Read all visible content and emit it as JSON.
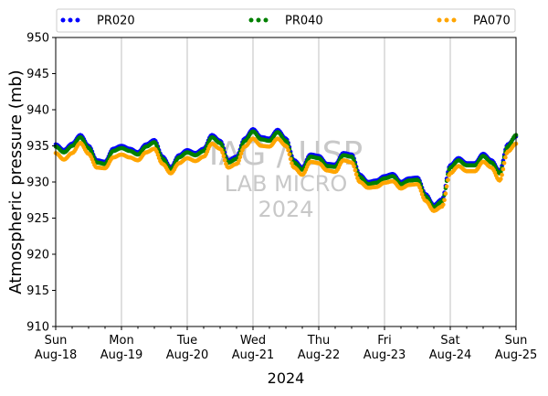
{
  "chart_data": {
    "type": "scatter",
    "xlabel": "2024",
    "ylabel": "Atmospheric pressure (mb)",
    "ylim": [
      910,
      950
    ],
    "yticks": [
      910,
      915,
      920,
      925,
      930,
      935,
      940,
      945,
      950
    ],
    "xlim": [
      "2024-08-18 00:00",
      "2024-08-25 00:00"
    ],
    "x_major_ticks": [
      {
        "day": "Sun",
        "date": "Aug-18"
      },
      {
        "day": "Mon",
        "date": "Aug-19"
      },
      {
        "day": "Tue",
        "date": "Aug-20"
      },
      {
        "day": "Wed",
        "date": "Aug-21"
      },
      {
        "day": "Thu",
        "date": "Aug-22"
      },
      {
        "day": "Fri",
        "date": "Aug-23"
      },
      {
        "day": "Sat",
        "date": "Aug-24"
      },
      {
        "day": "Sun",
        "date": "Aug-25"
      }
    ],
    "grid": "vertical major",
    "legend_position": "top",
    "watermark": [
      "IAG / USP",
      "LAB MICRO",
      "2024"
    ],
    "series": [
      {
        "name": "PR020",
        "color": "#0000ff",
        "points": [
          [
            "2024-08-18 00:00",
            935.2
          ],
          [
            "2024-08-18 03:00",
            934.4
          ],
          [
            "2024-08-18 06:00",
            935.3
          ],
          [
            "2024-08-18 09:00",
            936.5
          ],
          [
            "2024-08-18 12:00",
            935.0
          ],
          [
            "2024-08-18 15:00",
            933.0
          ],
          [
            "2024-08-18 18:00",
            932.8
          ],
          [
            "2024-08-18 21:00",
            934.6
          ],
          [
            "2024-08-19 00:00",
            935.0
          ],
          [
            "2024-08-19 03:00",
            934.6
          ],
          [
            "2024-08-19 06:00",
            934.1
          ],
          [
            "2024-08-19 09:00",
            935.2
          ],
          [
            "2024-08-19 12:00",
            935.8
          ],
          [
            "2024-08-19 15:00",
            933.5
          ],
          [
            "2024-08-19 18:00",
            932.0
          ],
          [
            "2024-08-19 21:00",
            933.7
          ],
          [
            "2024-08-20 00:00",
            934.4
          ],
          [
            "2024-08-20 03:00",
            934.0
          ],
          [
            "2024-08-20 06:00",
            934.6
          ],
          [
            "2024-08-20 09:00",
            936.5
          ],
          [
            "2024-08-20 12:00",
            935.7
          ],
          [
            "2024-08-20 15:00",
            933.0
          ],
          [
            "2024-08-20 18:00",
            933.5
          ],
          [
            "2024-08-20 21:00",
            936.0
          ],
          [
            "2024-08-21 00:00",
            937.3
          ],
          [
            "2024-08-21 03:00",
            936.2
          ],
          [
            "2024-08-21 06:00",
            936.0
          ],
          [
            "2024-08-21 09:00",
            937.2
          ],
          [
            "2024-08-21 12:00",
            936.0
          ],
          [
            "2024-08-21 15:00",
            933.0
          ],
          [
            "2024-08-21 18:00",
            932.0
          ],
          [
            "2024-08-21 21:00",
            933.8
          ],
          [
            "2024-08-22 00:00",
            933.6
          ],
          [
            "2024-08-22 03:00",
            932.5
          ],
          [
            "2024-08-22 06:00",
            932.4
          ],
          [
            "2024-08-22 09:00",
            934.0
          ],
          [
            "2024-08-22 12:00",
            933.8
          ],
          [
            "2024-08-22 15:00",
            931.0
          ],
          [
            "2024-08-22 18:00",
            930.0
          ],
          [
            "2024-08-22 21:00",
            930.2
          ],
          [
            "2024-08-23 00:00",
            930.8
          ],
          [
            "2024-08-23 03:00",
            931.1
          ],
          [
            "2024-08-23 06:00",
            930.0
          ],
          [
            "2024-08-23 09:00",
            930.5
          ],
          [
            "2024-08-23 12:00",
            930.6
          ],
          [
            "2024-08-23 15:00",
            928.3
          ],
          [
            "2024-08-23 18:00",
            926.8
          ],
          [
            "2024-08-23 21:00",
            927.6
          ],
          [
            "2024-08-24 00:00",
            932.3
          ],
          [
            "2024-08-24 03:00",
            933.3
          ],
          [
            "2024-08-24 06:00",
            932.6
          ],
          [
            "2024-08-24 09:00",
            932.6
          ],
          [
            "2024-08-24 12:00",
            933.9
          ],
          [
            "2024-08-24 15:00",
            933.0
          ],
          [
            "2024-08-24 18:00",
            931.5
          ],
          [
            "2024-08-24 21:00",
            935.2
          ],
          [
            "2024-08-25 00:00",
            936.3
          ]
        ]
      },
      {
        "name": "PR040",
        "color": "#008000",
        "points": [
          [
            "2024-08-18 00:00",
            934.9
          ],
          [
            "2024-08-18 03:00",
            934.1
          ],
          [
            "2024-08-18 06:00",
            935.0
          ],
          [
            "2024-08-18 09:00",
            936.2
          ],
          [
            "2024-08-18 12:00",
            934.7
          ],
          [
            "2024-08-18 15:00",
            932.7
          ],
          [
            "2024-08-18 18:00",
            932.5
          ],
          [
            "2024-08-18 21:00",
            934.3
          ],
          [
            "2024-08-19 00:00",
            934.7
          ],
          [
            "2024-08-19 03:00",
            934.3
          ],
          [
            "2024-08-19 06:00",
            933.8
          ],
          [
            "2024-08-19 09:00",
            934.9
          ],
          [
            "2024-08-19 12:00",
            935.5
          ],
          [
            "2024-08-19 15:00",
            933.2
          ],
          [
            "2024-08-19 18:00",
            931.7
          ],
          [
            "2024-08-19 21:00",
            933.4
          ],
          [
            "2024-08-20 00:00",
            934.1
          ],
          [
            "2024-08-20 03:00",
            933.7
          ],
          [
            "2024-08-20 06:00",
            934.3
          ],
          [
            "2024-08-20 09:00",
            936.2
          ],
          [
            "2024-08-20 12:00",
            935.4
          ],
          [
            "2024-08-20 15:00",
            932.7
          ],
          [
            "2024-08-20 18:00",
            933.2
          ],
          [
            "2024-08-20 21:00",
            935.7
          ],
          [
            "2024-08-21 00:00",
            937.0
          ],
          [
            "2024-08-21 03:00",
            935.9
          ],
          [
            "2024-08-21 06:00",
            935.7
          ],
          [
            "2024-08-21 09:00",
            936.9
          ],
          [
            "2024-08-21 12:00",
            935.7
          ],
          [
            "2024-08-21 15:00",
            932.7
          ],
          [
            "2024-08-21 18:00",
            931.7
          ],
          [
            "2024-08-21 21:00",
            933.5
          ],
          [
            "2024-08-22 00:00",
            933.3
          ],
          [
            "2024-08-22 03:00",
            932.2
          ],
          [
            "2024-08-22 06:00",
            932.1
          ],
          [
            "2024-08-22 09:00",
            933.7
          ],
          [
            "2024-08-22 12:00",
            933.5
          ],
          [
            "2024-08-22 15:00",
            930.7
          ],
          [
            "2024-08-22 18:00",
            929.7
          ],
          [
            "2024-08-22 21:00",
            929.9
          ],
          [
            "2024-08-23 00:00",
            930.5
          ],
          [
            "2024-08-23 03:00",
            930.8
          ],
          [
            "2024-08-23 06:00",
            929.7
          ],
          [
            "2024-08-23 09:00",
            930.2
          ],
          [
            "2024-08-23 12:00",
            930.3
          ],
          [
            "2024-08-23 15:00",
            928.0
          ],
          [
            "2024-08-23 18:00",
            926.5
          ],
          [
            "2024-08-23 21:00",
            927.3
          ],
          [
            "2024-08-24 00:00",
            932.0
          ],
          [
            "2024-08-24 03:00",
            933.0
          ],
          [
            "2024-08-24 06:00",
            932.3
          ],
          [
            "2024-08-24 09:00",
            932.3
          ],
          [
            "2024-08-24 12:00",
            933.6
          ],
          [
            "2024-08-24 15:00",
            932.7
          ],
          [
            "2024-08-24 18:00",
            931.2
          ],
          [
            "2024-08-24 21:00",
            934.9
          ],
          [
            "2024-08-25 00:00",
            936.5
          ]
        ]
      },
      {
        "name": "PA070",
        "color": "#ffa500",
        "points": [
          [
            "2024-08-18 00:00",
            934.0
          ],
          [
            "2024-08-18 03:00",
            933.1
          ],
          [
            "2024-08-18 06:00",
            934.0
          ],
          [
            "2024-08-18 09:00",
            935.4
          ],
          [
            "2024-08-18 12:00",
            933.9
          ],
          [
            "2024-08-18 15:00",
            932.0
          ],
          [
            "2024-08-18 18:00",
            931.9
          ],
          [
            "2024-08-18 21:00",
            933.4
          ],
          [
            "2024-08-19 00:00",
            933.8
          ],
          [
            "2024-08-19 03:00",
            933.4
          ],
          [
            "2024-08-19 06:00",
            933.0
          ],
          [
            "2024-08-19 09:00",
            934.1
          ],
          [
            "2024-08-19 12:00",
            934.6
          ],
          [
            "2024-08-19 15:00",
            932.5
          ],
          [
            "2024-08-19 18:00",
            931.2
          ],
          [
            "2024-08-19 21:00",
            932.6
          ],
          [
            "2024-08-20 00:00",
            933.3
          ],
          [
            "2024-08-20 03:00",
            932.9
          ],
          [
            "2024-08-20 06:00",
            933.5
          ],
          [
            "2024-08-20 09:00",
            935.3
          ],
          [
            "2024-08-20 12:00",
            934.6
          ],
          [
            "2024-08-20 15:00",
            932.0
          ],
          [
            "2024-08-20 18:00",
            932.5
          ],
          [
            "2024-08-20 21:00",
            934.9
          ],
          [
            "2024-08-21 00:00",
            936.0
          ],
          [
            "2024-08-21 03:00",
            935.0
          ],
          [
            "2024-08-21 06:00",
            934.9
          ],
          [
            "2024-08-21 09:00",
            936.0
          ],
          [
            "2024-08-21 12:00",
            935.0
          ],
          [
            "2024-08-21 15:00",
            932.0
          ],
          [
            "2024-08-21 18:00",
            931.0
          ],
          [
            "2024-08-21 21:00",
            932.8
          ],
          [
            "2024-08-22 00:00",
            932.6
          ],
          [
            "2024-08-22 03:00",
            931.6
          ],
          [
            "2024-08-22 06:00",
            931.4
          ],
          [
            "2024-08-22 09:00",
            933.0
          ],
          [
            "2024-08-22 12:00",
            932.7
          ],
          [
            "2024-08-22 15:00",
            930.0
          ],
          [
            "2024-08-22 18:00",
            929.2
          ],
          [
            "2024-08-22 21:00",
            929.3
          ],
          [
            "2024-08-23 00:00",
            929.9
          ],
          [
            "2024-08-23 03:00",
            930.1
          ],
          [
            "2024-08-23 06:00",
            929.1
          ],
          [
            "2024-08-23 09:00",
            929.6
          ],
          [
            "2024-08-23 12:00",
            929.7
          ],
          [
            "2024-08-23 15:00",
            927.4
          ],
          [
            "2024-08-23 18:00",
            926.0
          ],
          [
            "2024-08-23 21:00",
            926.6
          ],
          [
            "2024-08-24 00:00",
            931.2
          ],
          [
            "2024-08-24 03:00",
            932.2
          ],
          [
            "2024-08-24 06:00",
            931.5
          ],
          [
            "2024-08-24 09:00",
            931.5
          ],
          [
            "2024-08-24 12:00",
            932.8
          ],
          [
            "2024-08-24 15:00",
            932.0
          ],
          [
            "2024-08-24 18:00",
            930.2
          ],
          [
            "2024-08-24 21:00",
            934.2
          ],
          [
            "2024-08-25 00:00",
            935.3
          ]
        ]
      }
    ]
  }
}
